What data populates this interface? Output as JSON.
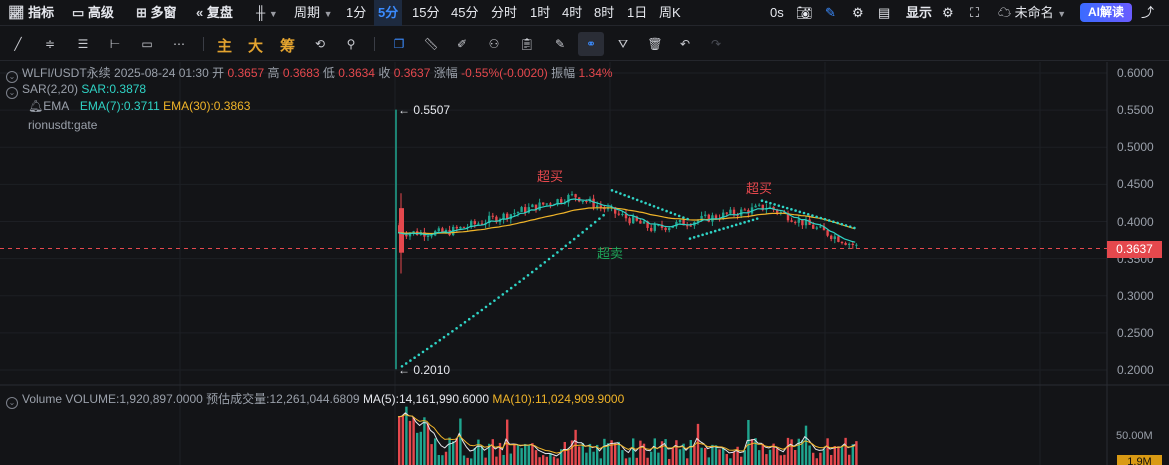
{
  "toolbar": {
    "indicators": "指标",
    "advanced": "高级",
    "multi_window": "多窗",
    "replay": "复盘",
    "period": "周期",
    "intervals": [
      "1分",
      "5分",
      "15分",
      "45分",
      "分时",
      "1时",
      "4时",
      "8时",
      "1日",
      "周K"
    ],
    "active_interval": "5分",
    "countdown": "0s",
    "display": "显示",
    "unnamed": "未命名",
    "ai": "AI解读"
  },
  "drawbar": {
    "main": "主",
    "big": "大",
    "chip": "筹"
  },
  "info": {
    "symbol": "WLFI/USDT永续",
    "datetime": "2025-08-24 01:30",
    "open_label": "开",
    "open": "0.3657",
    "high_label": "高",
    "high": "0.3683",
    "low_label": "低",
    "low": "0.3634",
    "close_label": "收",
    "close": "0.3637",
    "change_label": "涨幅",
    "change": "-0.55%(-0.0020)",
    "amp_label": "振幅",
    "amp": "1.34%",
    "sar_name": "SAR(2,20)",
    "sar_value": "SAR:0.3878",
    "ema_name": "EMA",
    "ema7": "EMA(7):0.3711",
    "ema30": "EMA(30):0.3863",
    "source": "rionusdt:gate"
  },
  "volume": {
    "name": "Volume",
    "vol": "VOLUME:1,920,897.0000",
    "est": "预估成交量:12,261,044.6809",
    "ma5": "MA(5):14,161,990.6000",
    "ma10": "MA(10):11,024,909.9000",
    "axis_top": "50.00M",
    "axis_last": "1.9M"
  },
  "price_axis": {
    "ticks": [
      "0.6000",
      "0.5500",
      "0.5000",
      "0.4500",
      "0.4000",
      "0.3500",
      "0.3000",
      "0.2500",
      "0.2000"
    ],
    "last_price": "0.3637"
  },
  "annotations": {
    "high_mark": "0.5507",
    "low_mark": "0.2010",
    "overbought": "超买",
    "oversold": "超卖"
  },
  "colors": {
    "up": "#1fa58f",
    "down": "#e5484d",
    "accent": "#3b8cff",
    "ema7": "#2fd3c5",
    "ema30": "#f0b429"
  }
}
